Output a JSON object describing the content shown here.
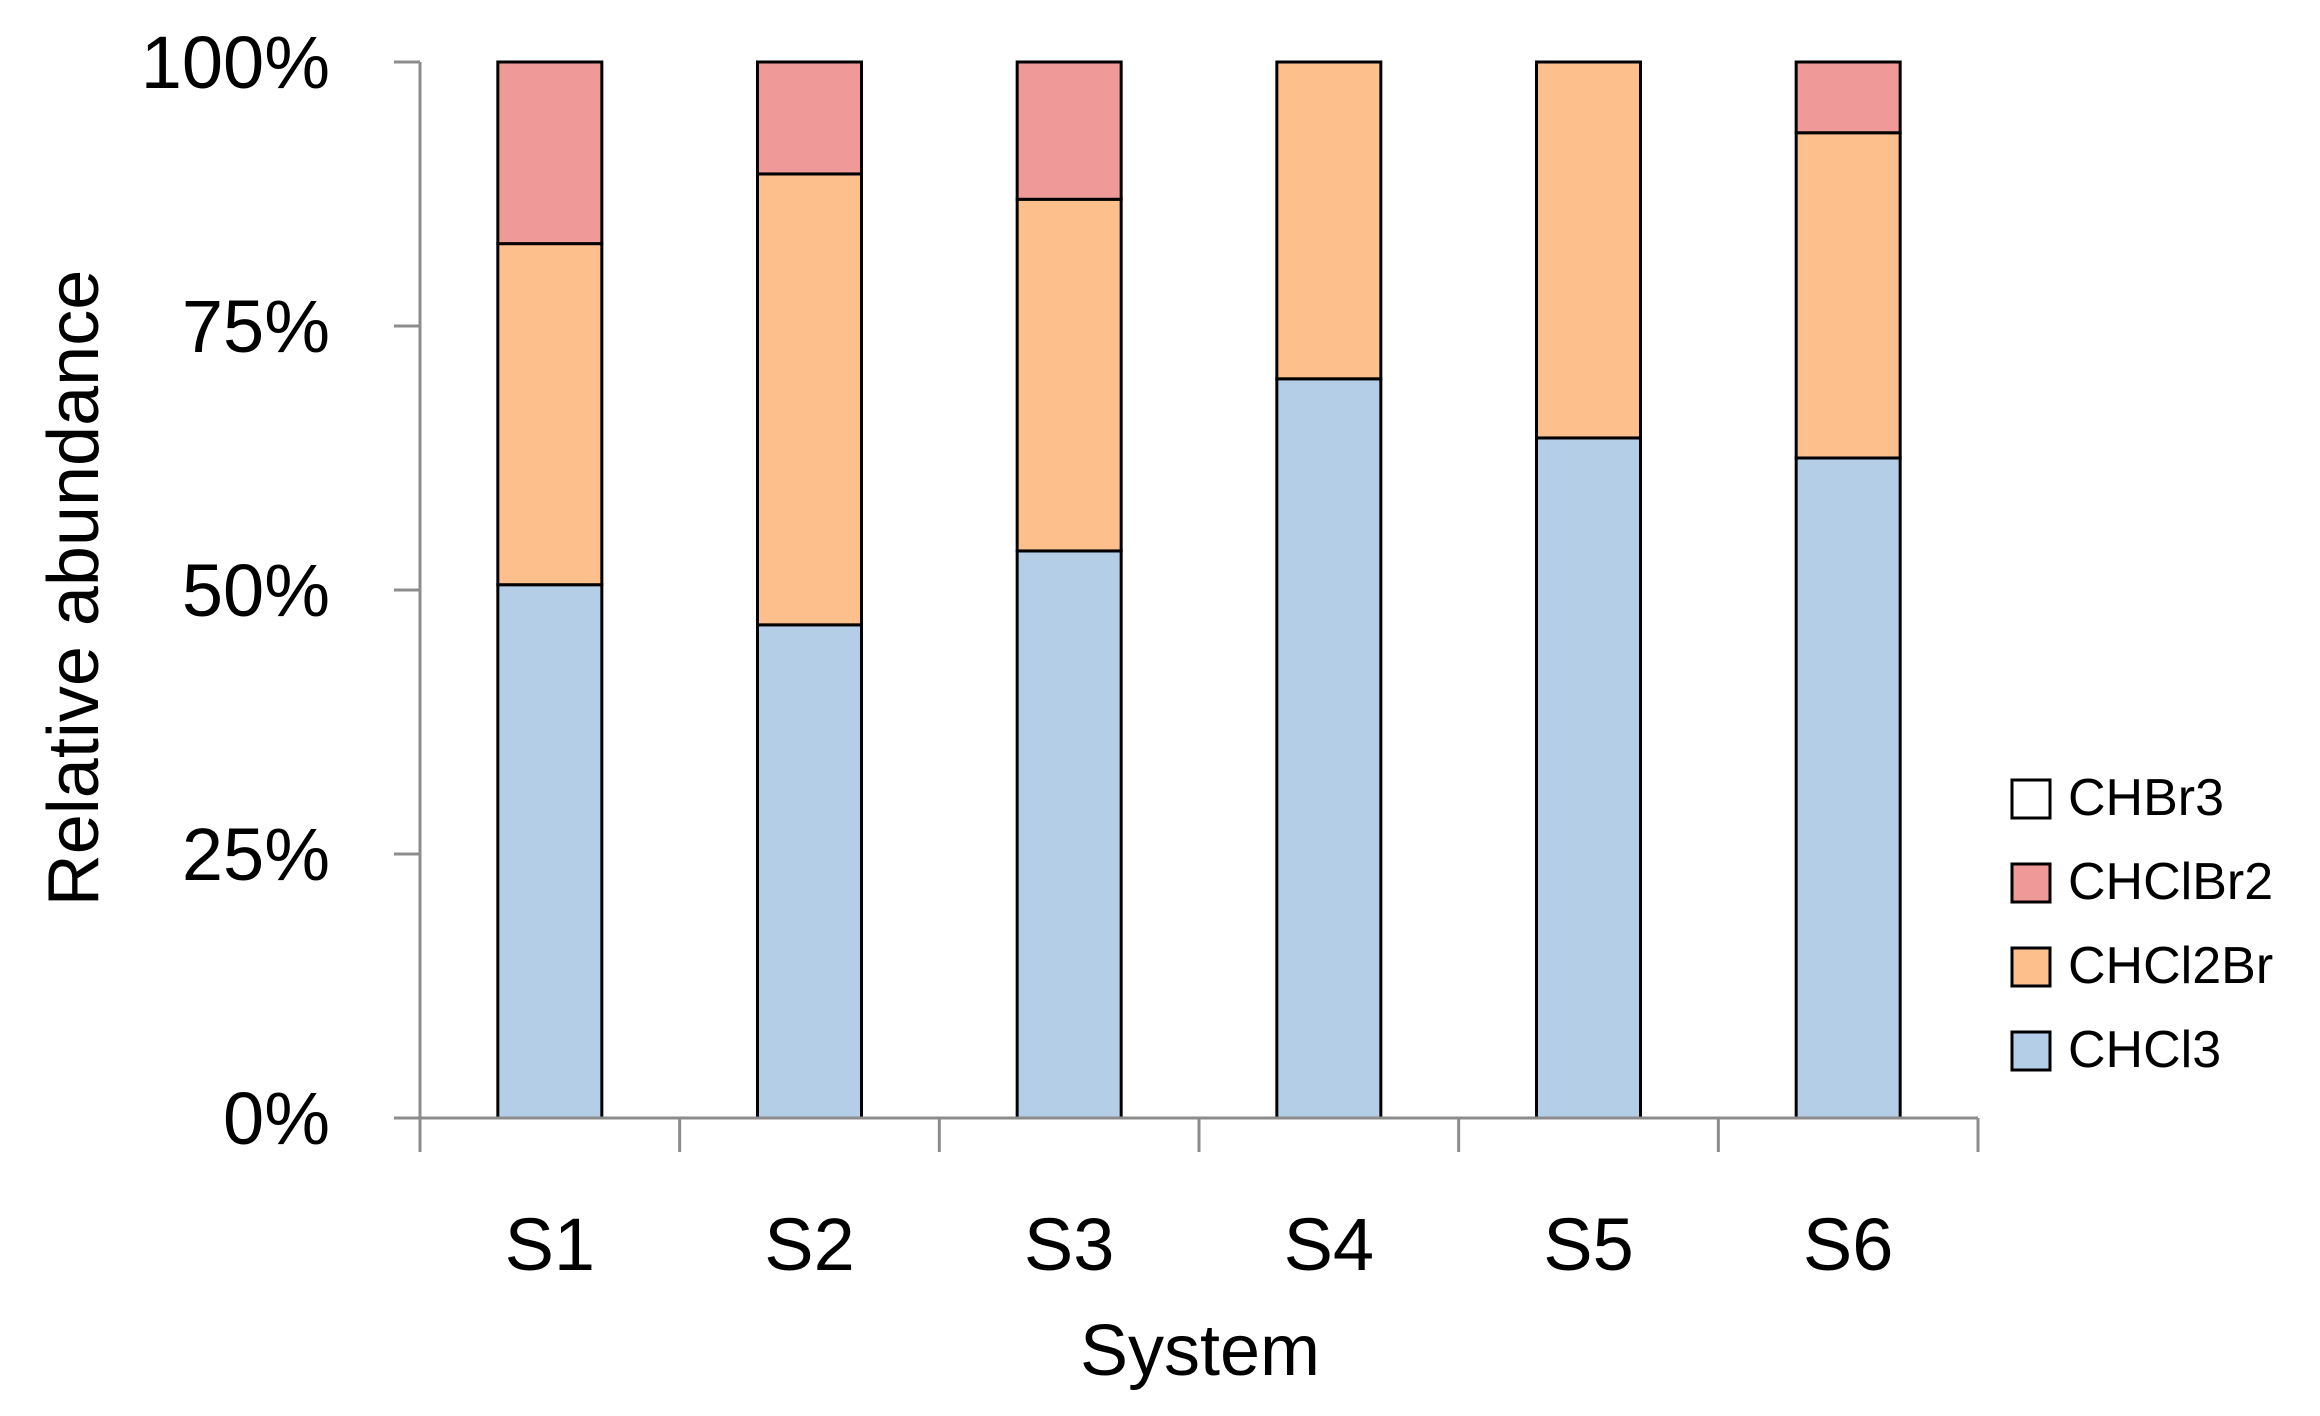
{
  "chart_data": {
    "type": "bar",
    "stacked": true,
    "percent_stacked": true,
    "title": "",
    "xlabel": "System",
    "ylabel": "Relative abundance",
    "categories": [
      "S1",
      "S2",
      "S3",
      "S4",
      "S5",
      "S6"
    ],
    "ylim": [
      0,
      100
    ],
    "yticks": [
      0,
      25,
      50,
      75,
      100
    ],
    "ytick_labels": [
      "0%",
      "25%",
      "50%",
      "75%",
      "100%"
    ],
    "grid": false,
    "legend_position": "right",
    "series": [
      {
        "name": "CHCl3",
        "color": "#b4cee8",
        "values": [
          50.5,
          46.7,
          53.7,
          70.0,
          64.4,
          62.5
        ]
      },
      {
        "name": "CHCl2Br",
        "color": "#fdbf8c",
        "values": [
          32.3,
          42.7,
          33.3,
          30.0,
          35.6,
          30.8
        ]
      },
      {
        "name": "CHClBr2",
        "color": "#ef9a99",
        "values": [
          17.2,
          10.6,
          13.0,
          0,
          0,
          6.7
        ]
      },
      {
        "name": "CHBr3",
        "color": "#ffffff",
        "values": [
          0,
          0,
          0,
          0,
          0,
          0
        ]
      }
    ],
    "legend_order": [
      "CHBr3",
      "CHClBr2",
      "CHCl2Br",
      "CHCl3"
    ]
  }
}
